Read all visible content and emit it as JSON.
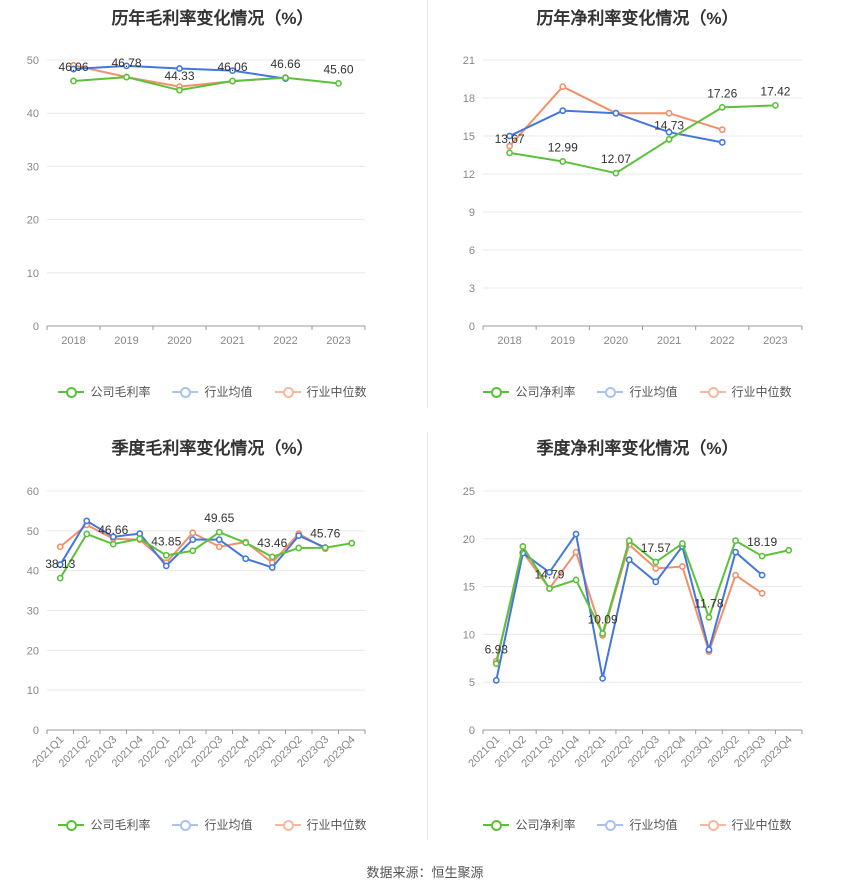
{
  "colors": {
    "company": "#5cc13a",
    "avg": "#4477dd",
    "median": "#f2906a"
  },
  "source": "数据来源：恒生聚源",
  "chart_data": [
    {
      "id": "annual-gross",
      "type": "line",
      "title": "历年毛利率变化情况（%）",
      "categories": [
        "2018",
        "2019",
        "2020",
        "2021",
        "2022",
        "2023"
      ],
      "ylim": [
        0,
        50
      ],
      "yticks": [
        0,
        10,
        20,
        30,
        40,
        50
      ],
      "legend": [
        "公司毛利率",
        "行业均值",
        "行业中位数"
      ],
      "series": [
        {
          "name": "公司毛利率",
          "values": [
            46.06,
            46.78,
            44.33,
            46.06,
            46.66,
            45.6
          ]
        },
        {
          "name": "行业均值",
          "values": [
            48.3,
            48.9,
            48.4,
            48.0,
            46.5,
            null
          ]
        },
        {
          "name": "行业中位数",
          "values": [
            49.0,
            46.8,
            45.0,
            46.0,
            46.7,
            null
          ]
        }
      ],
      "labels": [
        {
          "i": 0,
          "text": "46.06"
        },
        {
          "i": 1,
          "text": "46.78"
        },
        {
          "i": 2,
          "text": "44.33"
        },
        {
          "i": 3,
          "text": "46.06"
        },
        {
          "i": 4,
          "text": "46.66"
        },
        {
          "i": 5,
          "text": "45.60"
        }
      ]
    },
    {
      "id": "annual-net",
      "type": "line",
      "title": "历年净利率变化情况（%）",
      "categories": [
        "2018",
        "2019",
        "2020",
        "2021",
        "2022",
        "2023"
      ],
      "ylim": [
        0,
        21
      ],
      "yticks": [
        0,
        3,
        6,
        9,
        12,
        15,
        18,
        21
      ],
      "legend": [
        "公司净利率",
        "行业均值",
        "行业中位数"
      ],
      "series": [
        {
          "name": "公司净利率",
          "values": [
            13.67,
            12.99,
            12.07,
            14.73,
            17.26,
            17.42
          ]
        },
        {
          "name": "行业均值",
          "values": [
            15.0,
            17.0,
            16.8,
            15.3,
            14.5,
            null
          ]
        },
        {
          "name": "行业中位数",
          "values": [
            14.2,
            18.9,
            16.8,
            16.8,
            15.5,
            null
          ]
        }
      ],
      "labels": [
        {
          "i": 0,
          "text": "13.67"
        },
        {
          "i": 1,
          "text": "12.99"
        },
        {
          "i": 2,
          "text": "12.07"
        },
        {
          "i": 3,
          "text": "14.73"
        },
        {
          "i": 4,
          "text": "17.26"
        },
        {
          "i": 5,
          "text": "17.42"
        }
      ]
    },
    {
      "id": "quarter-gross",
      "type": "line",
      "title": "季度毛利率变化情况（%）",
      "categories": [
        "2021Q1",
        "2021Q2",
        "2021Q3",
        "2021Q4",
        "2022Q1",
        "2022Q2",
        "2022Q3",
        "2022Q4",
        "2023Q1",
        "2023Q2",
        "2023Q3",
        "2023Q4"
      ],
      "ylim": [
        0,
        60
      ],
      "yticks": [
        0,
        10,
        20,
        30,
        40,
        50,
        60
      ],
      "legend": [
        "公司毛利率",
        "行业均值",
        "行业中位数"
      ],
      "series": [
        {
          "name": "公司毛利率",
          "values": [
            38.13,
            49.2,
            46.66,
            48.0,
            43.85,
            45.0,
            49.65,
            47.0,
            43.46,
            45.7,
            45.76,
            46.9
          ]
        },
        {
          "name": "行业均值",
          "values": [
            41.5,
            52.5,
            48.5,
            49.3,
            41.2,
            47.8,
            47.8,
            43.0,
            40.8,
            48.8,
            45.8,
            null
          ]
        },
        {
          "name": "行业中位数",
          "values": [
            46.0,
            51.5,
            48.0,
            47.8,
            42.0,
            49.5,
            46.0,
            47.2,
            42.0,
            49.3,
            45.5,
            null
          ]
        }
      ],
      "labels": [
        {
          "i": 0,
          "text": "38.13"
        },
        {
          "i": 2,
          "text": "46.66"
        },
        {
          "i": 4,
          "text": "43.85"
        },
        {
          "i": 6,
          "text": "49.65"
        },
        {
          "i": 8,
          "text": "43.46"
        },
        {
          "i": 10,
          "text": "45.76"
        }
      ]
    },
    {
      "id": "quarter-net",
      "type": "line",
      "title": "季度净利率变化情况（%）",
      "categories": [
        "2021Q1",
        "2021Q2",
        "2021Q3",
        "2021Q4",
        "2022Q1",
        "2022Q2",
        "2022Q3",
        "2022Q4",
        "2023Q1",
        "2023Q2",
        "2023Q3",
        "2023Q4"
      ],
      "ylim": [
        0,
        25
      ],
      "yticks": [
        0,
        5,
        10,
        15,
        20,
        25
      ],
      "legend": [
        "公司净利率",
        "行业均值",
        "行业中位数"
      ],
      "series": [
        {
          "name": "公司净利率",
          "values": [
            6.93,
            19.2,
            14.79,
            15.7,
            10.09,
            19.8,
            17.57,
            19.5,
            11.78,
            19.8,
            18.19,
            18.8
          ]
        },
        {
          "name": "行业均值",
          "values": [
            5.2,
            18.5,
            16.5,
            20.5,
            5.4,
            17.8,
            15.5,
            19.2,
            8.4,
            18.6,
            16.2,
            null
          ]
        },
        {
          "name": "行业中位数",
          "values": [
            7.2,
            18.6,
            14.8,
            18.6,
            9.9,
            19.4,
            16.9,
            17.1,
            8.2,
            16.2,
            14.3,
            null
          ]
        }
      ],
      "labels": [
        {
          "i": 0,
          "text": "6.93"
        },
        {
          "i": 2,
          "text": "14.79"
        },
        {
          "i": 4,
          "text": "10.09"
        },
        {
          "i": 6,
          "text": "17.57"
        },
        {
          "i": 8,
          "text": "11.78"
        },
        {
          "i": 10,
          "text": "18.19"
        }
      ]
    }
  ]
}
